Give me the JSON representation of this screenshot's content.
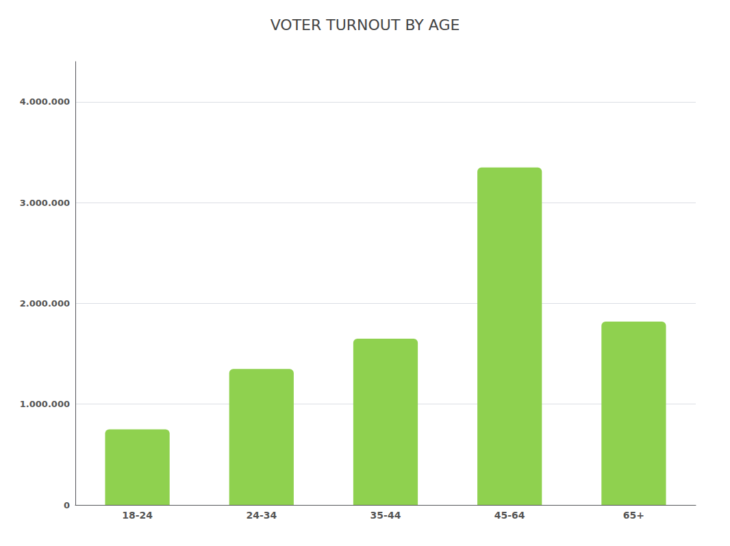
{
  "chart_data": {
    "type": "bar",
    "title": "VOTER TURNOUT BY AGE",
    "categories": [
      "18-24",
      "24-34",
      "35-44",
      "45-64",
      "65+"
    ],
    "values": [
      750000,
      1350000,
      1650000,
      3350000,
      1820000
    ],
    "color": "#8FD14F",
    "ylim": [
      0,
      4400000
    ],
    "yticks": [
      0,
      {
        "value": 1000000,
        "label": "1.000.000"
      },
      {
        "value": 2000000,
        "label": "2.000.000"
      },
      {
        "value": 3000000,
        "label": "3.000.000"
      },
      {
        "value": 4000000,
        "label": "4.000.000"
      }
    ],
    "grid": true
  }
}
